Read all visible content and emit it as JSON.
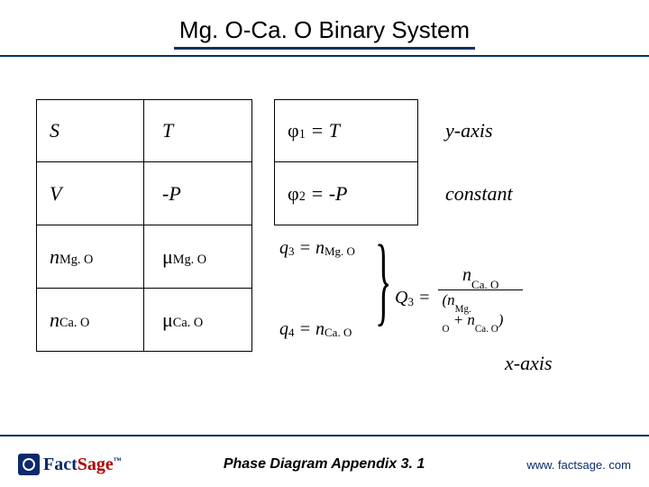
{
  "title": "Mg. O-Ca. O Binary System",
  "table": {
    "rows": [
      {
        "q": "S",
        "p": "T",
        "phi": "1",
        "phi_rhs": "T",
        "label": "y-axis"
      },
      {
        "q": "V",
        "p": "-P",
        "phi": "2",
        "phi_rhs": "-P",
        "label": "constant"
      },
      {
        "q_html": "n<sub>Mg. O</sub>",
        "p_html": "μ<sub>Mg. O</sub>"
      },
      {
        "q_html": "n<sub>Ca. O</sub>",
        "p_html": "μ<sub>Ca. O</sub>"
      }
    ]
  },
  "formulas": {
    "q3": "q",
    "q3sub": "3",
    "q3rhs_n": "n",
    "q3rhs_sub": "Mg. O",
    "q4": "q",
    "q4sub": "4",
    "q4rhs_n": "n",
    "q4rhs_sub": "Ca. O",
    "Q3": "Q",
    "Q3sub": "3",
    "num_n": "n",
    "num_sub": "Ca. O",
    "den_n1": "n",
    "den_sub1": "Mg. O",
    "den_n2": "n",
    "den_sub2": "Ca. O"
  },
  "xaxis_label": "x-axis",
  "footer": {
    "logo_fact": "Fact",
    "logo_sage": "Sage",
    "center": "Phase Diagram  Appendix 3. 1",
    "url": "www. factsage. com"
  },
  "colors": {
    "rule": "#003366",
    "logo_blue": "#0a2a6b",
    "logo_red": "#b00000"
  }
}
